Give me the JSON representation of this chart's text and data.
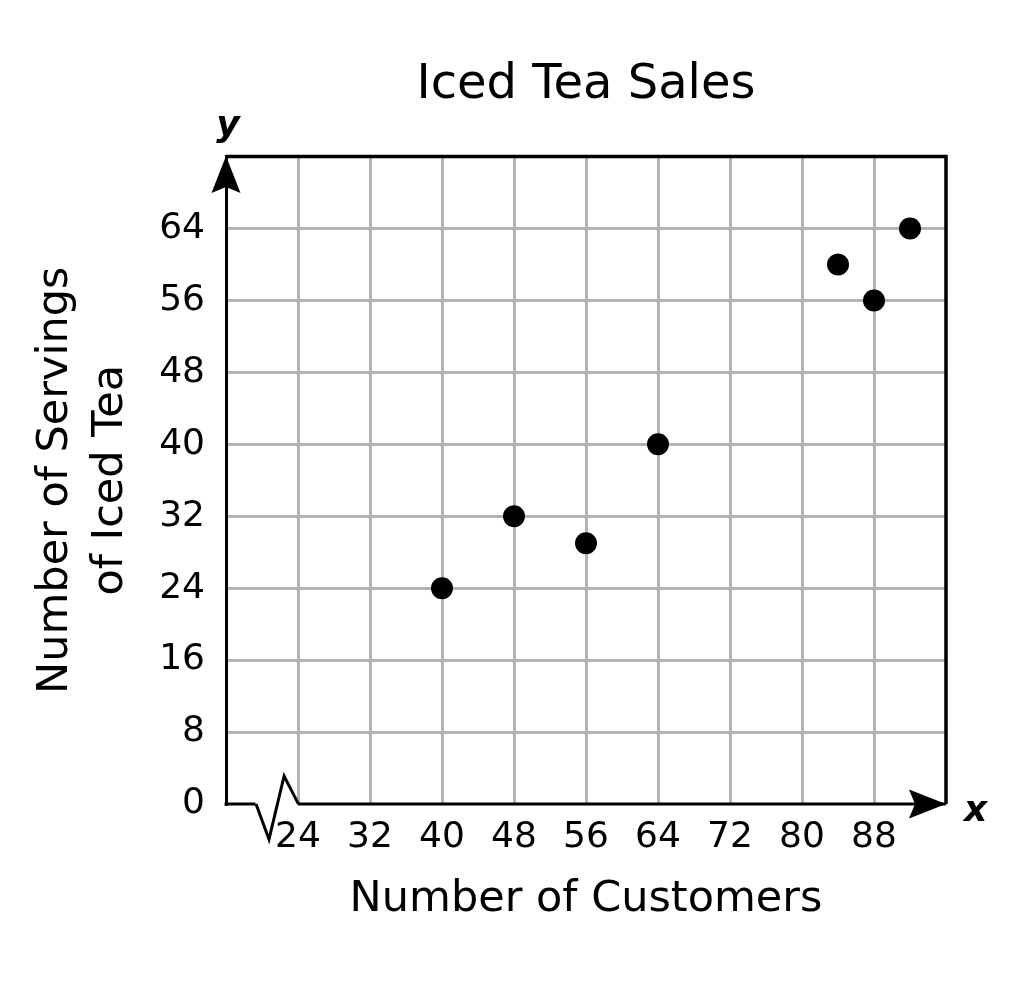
{
  "chart_data": {
    "type": "scatter",
    "title": "Iced Tea Sales",
    "xlabel": "Number of Customers",
    "ylabel": "Number of Servings\nof Iced Tea",
    "x": [
      40,
      48,
      56,
      64,
      84,
      88,
      92
    ],
    "values": [
      24,
      32,
      29,
      40,
      60,
      56,
      64
    ],
    "color": "#000000",
    "marker": "circle",
    "xlim": [
      16,
      96
    ],
    "xticks": [
      24,
      32,
      40,
      48,
      56,
      64,
      72,
      80,
      88
    ],
    "ylim": [
      0,
      72
    ],
    "yticks": [
      0,
      8,
      16,
      24,
      32,
      40,
      48,
      56,
      64
    ],
    "grid": true,
    "annotations": [
      "y",
      "x"
    ]
  }
}
